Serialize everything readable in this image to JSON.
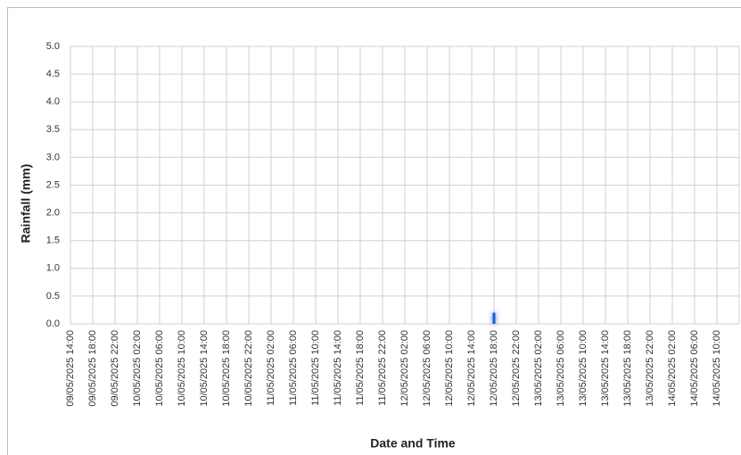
{
  "chart_data": {
    "type": "bar",
    "y_label": "Rainfall (mm)",
    "x_label": "Date and Time",
    "categories": [
      "09/05/2025 14:00",
      "09/05/2025 18:00",
      "09/05/2025 22:00",
      "10/05/2025 02:00",
      "10/05/2025 06:00",
      "10/05/2025 10:00",
      "10/05/2025 14:00",
      "10/05/2025 18:00",
      "10/05/2025 22:00",
      "11/05/2025 02:00",
      "11/05/2025 06:00",
      "11/05/2025 10:00",
      "11/05/2025 14:00",
      "11/05/2025 18:00",
      "11/05/2025 22:00",
      "12/05/2025 02:00",
      "12/05/2025 06:00",
      "12/05/2025 10:00",
      "12/05/2025 14:00",
      "12/05/2025 18:00",
      "12/05/2025 22:00",
      "13/05/2025 02:00",
      "13/05/2025 06:00",
      "13/05/2025 10:00",
      "13/05/2025 14:00",
      "13/05/2025 18:00",
      "13/05/2025 22:00",
      "14/05/2025 02:00",
      "14/05/2025 06:00",
      "14/05/2025 10:00"
    ],
    "values": [
      0,
      0,
      0,
      0,
      0,
      0,
      0,
      0,
      0,
      0,
      0,
      0,
      0,
      0,
      0,
      0,
      0,
      0,
      0,
      0.2,
      0,
      0,
      0,
      0,
      0,
      0,
      0,
      0,
      0,
      0
    ],
    "color": "#1f5fd6",
    "ylim": [
      0,
      5
    ],
    "yticks": [
      {
        "value": 0,
        "label": "0.0"
      },
      0.5,
      {
        "value": 1,
        "label": "1.0"
      },
      1.5,
      {
        "value": 2,
        "label": "2.0"
      },
      2.5,
      {
        "value": 3,
        "label": "3.0"
      },
      3.5,
      {
        "value": 4,
        "label": "4.0"
      },
      4.5,
      {
        "value": 5,
        "label": "5.0"
      }
    ],
    "grid": true
  }
}
